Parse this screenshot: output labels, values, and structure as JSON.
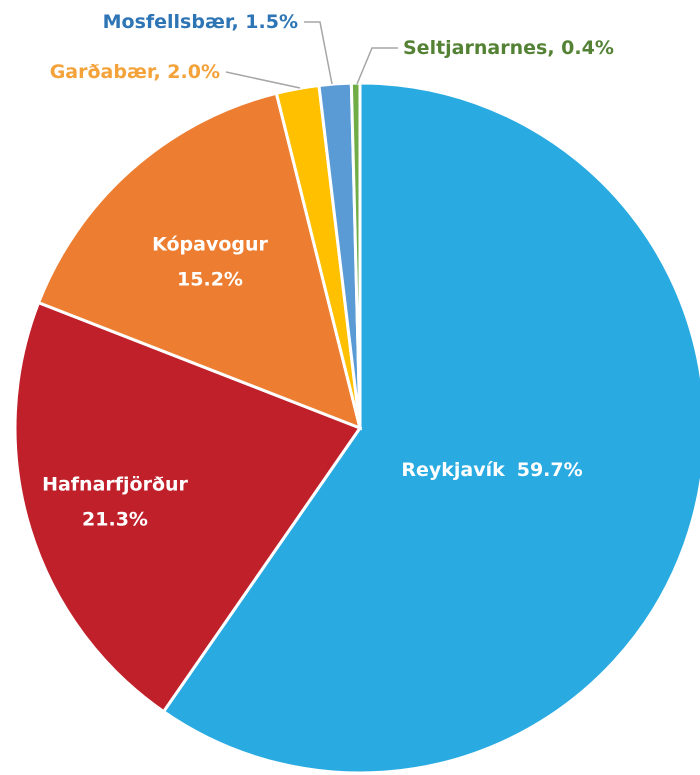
{
  "chart_data": {
    "type": "pie",
    "categories": [
      "Reykjavík",
      "Hafnarfjörður",
      "Kópavogur",
      "Garðabær",
      "Mosfellsbær",
      "Seltjarnarnes"
    ],
    "values": [
      59.7,
      21.3,
      15.2,
      2.0,
      1.5,
      0.4
    ],
    "value_labels": [
      "59.7%",
      "21.3%",
      "15.2%",
      "2.0%",
      "1.5%",
      "0.4%"
    ],
    "colors": [
      "#29abe2",
      "#c0202a",
      "#ed7d31",
      "#ffc000",
      "#5b9bd5",
      "#70ad47"
    ]
  }
}
